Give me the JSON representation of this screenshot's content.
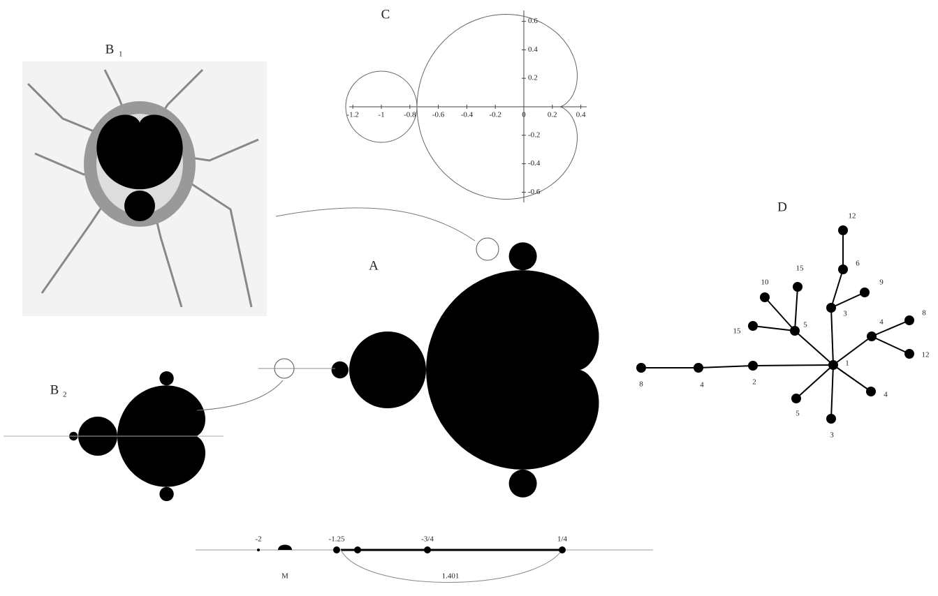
{
  "panels": {
    "a": "A",
    "b1": "B",
    "b1_sub": "1",
    "b2": "B",
    "b2_sub": "2",
    "c": "C",
    "d": "D"
  },
  "plot_c": {
    "xticks": [
      -1.2,
      -1,
      -0.8,
      -0.6,
      -0.4,
      -0.2,
      0,
      0.2,
      0.4
    ],
    "yticks": [
      0.6,
      0.4,
      0.2,
      -0.2,
      -0.4,
      -0.6
    ]
  },
  "tree": {
    "nodes": [
      {
        "label": "1"
      },
      {
        "label": "12"
      },
      {
        "label": "6"
      },
      {
        "label": "9"
      },
      {
        "label": "3"
      },
      {
        "label": "15"
      },
      {
        "label": "10"
      },
      {
        "label": "5"
      },
      {
        "label": "15"
      },
      {
        "label": "4"
      },
      {
        "label": "8"
      },
      {
        "label": "12"
      },
      {
        "label": "2"
      },
      {
        "label": "4"
      },
      {
        "label": "8"
      },
      {
        "label": "4"
      },
      {
        "label": "5"
      },
      {
        "label": "3"
      }
    ]
  },
  "number_line": {
    "labels": [
      "-2",
      "-1.25",
      "-3/4",
      "1/4"
    ],
    "below": [
      "M",
      "1.401"
    ]
  }
}
